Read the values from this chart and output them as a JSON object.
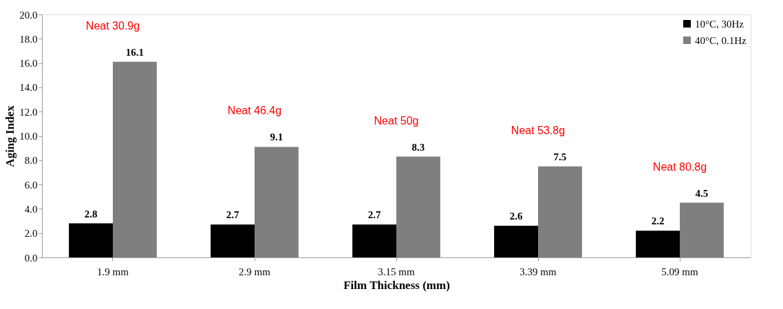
{
  "chart_data": {
    "type": "bar",
    "xlabel": "Film Thickness (mm)",
    "ylabel": "Aging Index",
    "categories": [
      "1.9 mm",
      "2.9 mm",
      "3.15 mm",
      "3.39 mm",
      "5.09 mm"
    ],
    "series": [
      {
        "name": "10°C, 30Hz",
        "color": "#000000",
        "values": [
          2.8,
          2.7,
          2.7,
          2.6,
          2.2
        ]
      },
      {
        "name": "40°C, 0.1Hz",
        "color": "#7f7f7f",
        "values": [
          16.1,
          9.1,
          8.3,
          7.5,
          4.5
        ]
      }
    ],
    "ylim": [
      0,
      20
    ],
    "yticks": [
      {
        "value": 0,
        "label": "0.0"
      },
      {
        "value": 2,
        "label": "2.0"
      },
      {
        "value": 4,
        "label": "4.0"
      },
      {
        "value": 6,
        "label": "6.0"
      },
      {
        "value": 8,
        "label": "8.0"
      },
      {
        "value": 10,
        "label": "10.0"
      },
      {
        "value": 12,
        "label": "12.0"
      },
      {
        "value": 14,
        "label": "14.0"
      },
      {
        "value": 16,
        "label": "16.0"
      },
      {
        "value": 18,
        "label": "18.0"
      },
      {
        "value": 20,
        "label": "20.0"
      }
    ],
    "annotations": [
      "Neat 30.9g",
      "Neat  46.4g",
      "Neat  50g",
      "Neat  53.8g",
      "Neat  80.8g"
    ],
    "data_labels": true,
    "legend": "top right",
    "grid": false
  }
}
